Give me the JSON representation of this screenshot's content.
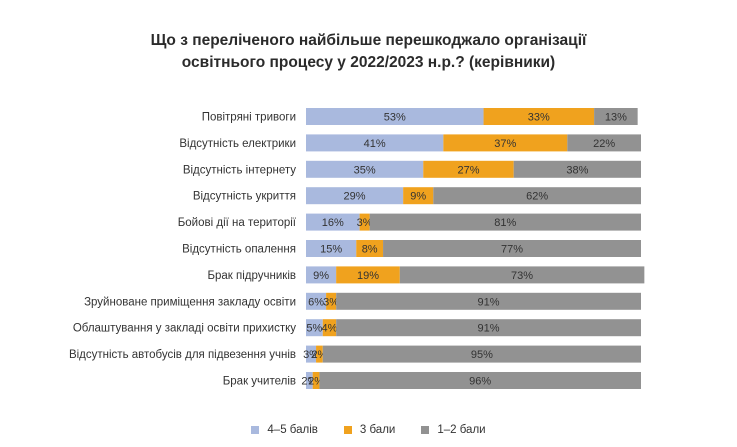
{
  "chart_data": {
    "type": "bar",
    "orientation": "horizontal",
    "stacked": true,
    "title_line1": "Що з переліченого найбільше перешкоджало організації",
    "title_line2": "освітнього процесу у 2022/2023 н.р.? (керівники)",
    "categories": [
      "Повітряні тривоги",
      "Відсутність електрики",
      "Відсутність інтернету",
      "Відсутність укриття",
      "Бойові дії на території",
      "Відсутність опалення",
      "Брак підручників",
      "Зруйноване приміщення закладу освіти",
      "Облаштування у закладі освіти прихистку",
      "Відсутність автобусів для підвезення учнів",
      "Брак учителів"
    ],
    "series": [
      {
        "name": "4–5 балів",
        "color": "#a9b9de",
        "values": [
          53,
          41,
          35,
          29,
          16,
          15,
          9,
          6,
          5,
          3,
          2
        ]
      },
      {
        "name": "3 бали",
        "color": "#f0a21e",
        "values": [
          33,
          37,
          27,
          9,
          3,
          8,
          19,
          3,
          4,
          2,
          2
        ]
      },
      {
        "name": "1–2 бали",
        "color": "#929292",
        "values": [
          13,
          22,
          38,
          62,
          81,
          77,
          73,
          91,
          91,
          95,
          96
        ]
      }
    ],
    "unit": "%",
    "legend_position": "bottom"
  }
}
